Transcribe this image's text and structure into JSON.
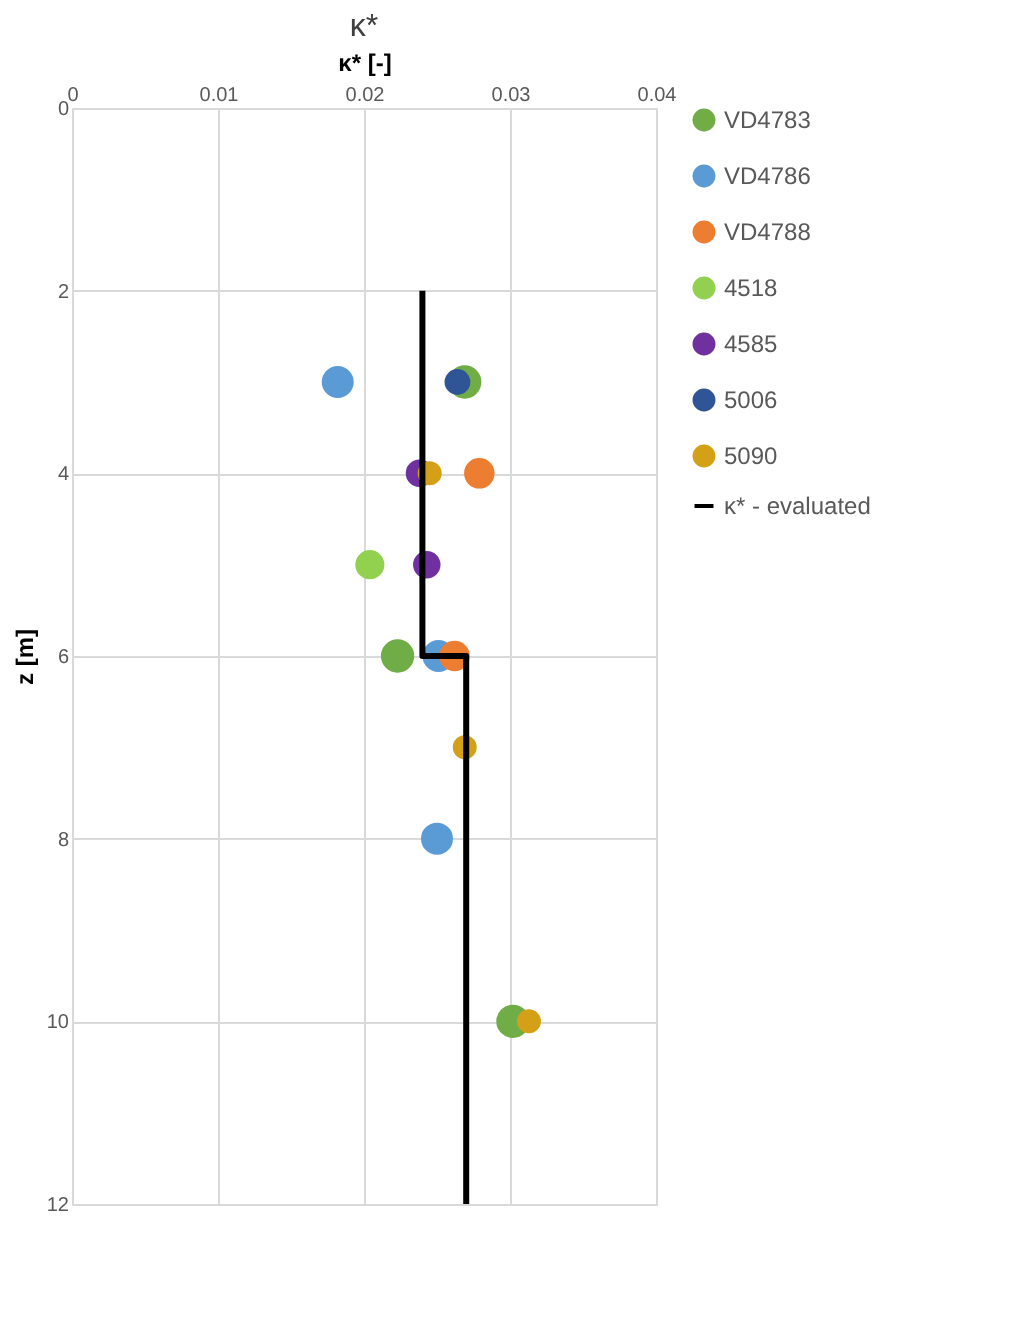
{
  "chart_data": {
    "type": "scatter",
    "title": "κ*",
    "xlabel": "κ* [-]",
    "ylabel": "z [m]",
    "xlim": [
      0,
      0.04
    ],
    "xticks": [
      0,
      0.01,
      0.02,
      0.03,
      0.04
    ],
    "ylim": [
      12,
      0
    ],
    "yticks": [
      0,
      2,
      4,
      6,
      8,
      10,
      12
    ],
    "grid": true,
    "legend": "right",
    "marker": "circle",
    "series": [
      {
        "name": "VD4783",
        "color": "#70ad47",
        "x": [
          0.0269,
          0.0223,
          0.0302
        ],
        "values": [
          3,
          6,
          10
        ]
      },
      {
        "name": "VD4786",
        "color": "#5b9bd5",
        "x": [
          0.0182,
          0.0251,
          0.025
        ],
        "values": [
          3,
          6,
          8
        ]
      },
      {
        "name": "VD4788",
        "color": "#ed7d31",
        "x": [
          0.0279,
          0.0262
        ],
        "values": [
          4,
          6
        ]
      },
      {
        "name": "4518",
        "color": "#92d050",
        "x": [
          0.0204
        ],
        "values": [
          5
        ]
      },
      {
        "name": "4585",
        "color": "#7030a0",
        "x": [
          0.0238,
          0.0243
        ],
        "values": [
          4,
          5
        ]
      },
      {
        "name": "5006",
        "color": "#2f5597",
        "x": [
          0.0264
        ],
        "values": [
          3
        ]
      },
      {
        "name": "5090",
        "color": "#d4a017",
        "x": [
          0.0245,
          0.0269,
          0.0313
        ],
        "values": [
          4,
          7,
          10
        ]
      },
      {
        "name": "κ* - evaluated",
        "type": "line",
        "color": "#000000",
        "line_style": "solid",
        "marker": "none",
        "x": [
          0.024,
          0.024,
          0.027,
          0.027
        ],
        "values": [
          2,
          6,
          6,
          12
        ]
      }
    ]
  }
}
